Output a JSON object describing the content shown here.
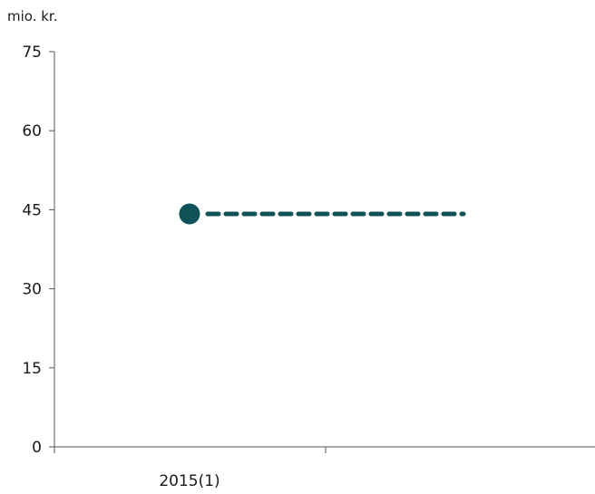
{
  "chart_data": {
    "type": "line",
    "unit_label": "mio. kr.",
    "ylim": [
      0,
      75
    ],
    "y_ticks": [
      0,
      15,
      30,
      45,
      60,
      75
    ],
    "x_tick_labels": [
      "2015(1)"
    ],
    "grid": false,
    "series": [
      {
        "style": "point",
        "color": "#0f5257",
        "points": [
          {
            "x": 0,
            "y": 44.2
          }
        ]
      },
      {
        "style": "dashed",
        "color": "#0f5257",
        "points": [
          {
            "x": 0,
            "y": 44.2
          },
          {
            "x": 1,
            "y": 44.2
          }
        ]
      }
    ]
  }
}
